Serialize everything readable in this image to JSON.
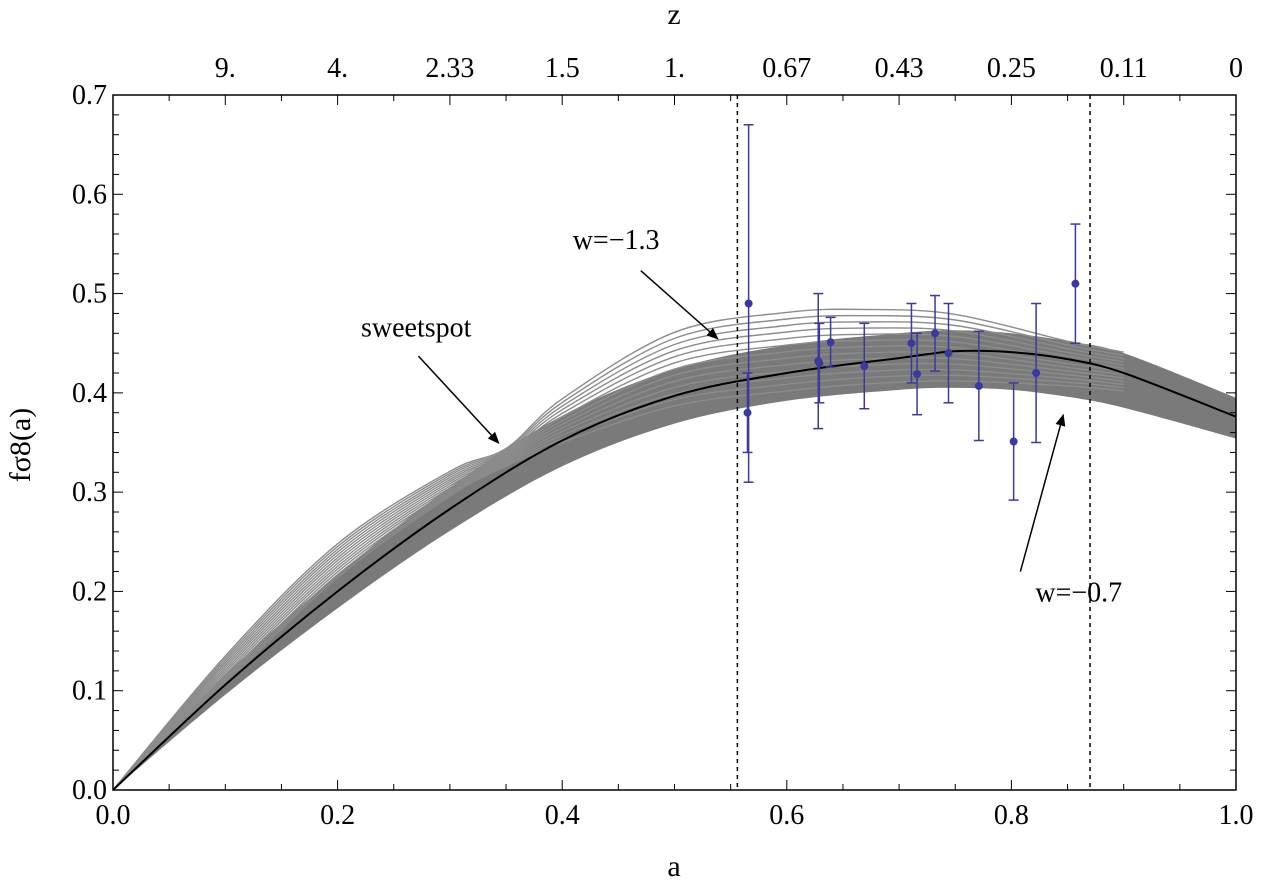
{
  "chart_data": {
    "type": "line",
    "xlabel": "a",
    "ylabel": "fσ8(a)",
    "top_label": "z",
    "xlim": [
      0.0,
      1.0
    ],
    "ylim": [
      0.0,
      0.7
    ],
    "x_ticks": [
      "0.0",
      "0.2",
      "0.4",
      "0.6",
      "0.8",
      "1.0"
    ],
    "y_ticks": [
      "0.0",
      "0.1",
      "0.2",
      "0.3",
      "0.4",
      "0.5",
      "0.6",
      "0.7"
    ],
    "top_ticks": [
      "9.",
      "4.",
      "2.33",
      "1.5",
      "1.",
      "0.67",
      "0.43",
      "0.25",
      "0.11",
      "0"
    ],
    "top_tick_a": [
      0.1,
      0.2,
      0.3,
      0.4,
      0.5,
      0.6,
      0.7,
      0.8,
      0.9,
      1.0
    ],
    "vertical_lines_a": [
      0.556,
      0.87
    ],
    "grid": false,
    "colors": {
      "band": "#7a7a7a",
      "family_lines": "#8c8c8c",
      "central_line": "#000000",
      "data_points": "#3a3a9e",
      "vertical_lines": "#000000"
    },
    "band": {
      "a": [
        0.0,
        0.1,
        0.2,
        0.3,
        0.4,
        0.5,
        0.6,
        0.7,
        0.75,
        0.8,
        0.85,
        0.9,
        1.0
      ],
      "upper": [
        0.0,
        0.116,
        0.217,
        0.305,
        0.377,
        0.424,
        0.448,
        0.46,
        0.463,
        0.46,
        0.452,
        0.44,
        0.395
      ],
      "lower": [
        0.0,
        0.096,
        0.183,
        0.261,
        0.326,
        0.369,
        0.392,
        0.403,
        0.405,
        0.403,
        0.396,
        0.385,
        0.354
      ],
      "center": [
        0.0,
        0.106,
        0.2,
        0.283,
        0.352,
        0.397,
        0.42,
        0.435,
        0.442,
        0.441,
        0.434,
        0.42,
        0.376
      ]
    },
    "family_curves": {
      "count": 13,
      "w_range": [
        -1.3,
        -0.7
      ],
      "a": [
        0.0,
        0.1,
        0.2,
        0.3,
        0.35,
        0.4,
        0.5,
        0.6,
        0.67,
        0.75,
        0.85,
        0.9
      ],
      "upper_curve": [
        0.0,
        0.135,
        0.248,
        0.321,
        0.344,
        0.394,
        0.461,
        0.481,
        0.484,
        0.479,
        0.452,
        0.441
      ],
      "lower_curve": [
        0.0,
        0.107,
        0.214,
        0.296,
        0.326,
        0.35,
        0.387,
        0.402,
        0.409,
        0.412,
        0.407,
        0.402
      ]
    },
    "data_points": [
      {
        "a": 0.565,
        "y": 0.38,
        "yerr": 0.04
      },
      {
        "a": 0.566,
        "y": 0.49,
        "yerr": 0.18
      },
      {
        "a": 0.628,
        "y": 0.432,
        "yerr": 0.068
      },
      {
        "a": 0.629,
        "y": 0.43,
        "yerr": 0.04
      },
      {
        "a": 0.639,
        "y": 0.451,
        "yerr": 0.025
      },
      {
        "a": 0.669,
        "y": 0.427,
        "yerr": 0.043
      },
      {
        "a": 0.711,
        "y": 0.45,
        "yerr": 0.04
      },
      {
        "a": 0.716,
        "y": 0.419,
        "yerr": 0.041
      },
      {
        "a": 0.732,
        "y": 0.46,
        "yerr": 0.038
      },
      {
        "a": 0.744,
        "y": 0.44,
        "yerr": 0.05
      },
      {
        "a": 0.771,
        "y": 0.407,
        "yerr": 0.055
      },
      {
        "a": 0.802,
        "y": 0.351,
        "yerr": 0.059
      },
      {
        "a": 0.822,
        "y": 0.42,
        "yerr": 0.07
      },
      {
        "a": 0.857,
        "y": 0.51,
        "yerr": 0.06
      }
    ],
    "annotations": [
      {
        "text": "w=−1.3",
        "text_a": 0.448,
        "text_y": 0.545,
        "arrow_from_a": 0.47,
        "arrow_from_y": 0.523,
        "arrow_to_a": 0.538,
        "arrow_to_y": 0.455
      },
      {
        "text": "sweetspot",
        "text_a": 0.27,
        "text_y": 0.457,
        "arrow_from_a": 0.272,
        "arrow_from_y": 0.437,
        "arrow_to_a": 0.343,
        "arrow_to_y": 0.35
      },
      {
        "text": "w=−0.7",
        "text_a": 0.86,
        "text_y": 0.19,
        "arrow_from_a": 0.808,
        "arrow_from_y": 0.22,
        "arrow_to_a": 0.846,
        "arrow_to_y": 0.377
      }
    ]
  }
}
